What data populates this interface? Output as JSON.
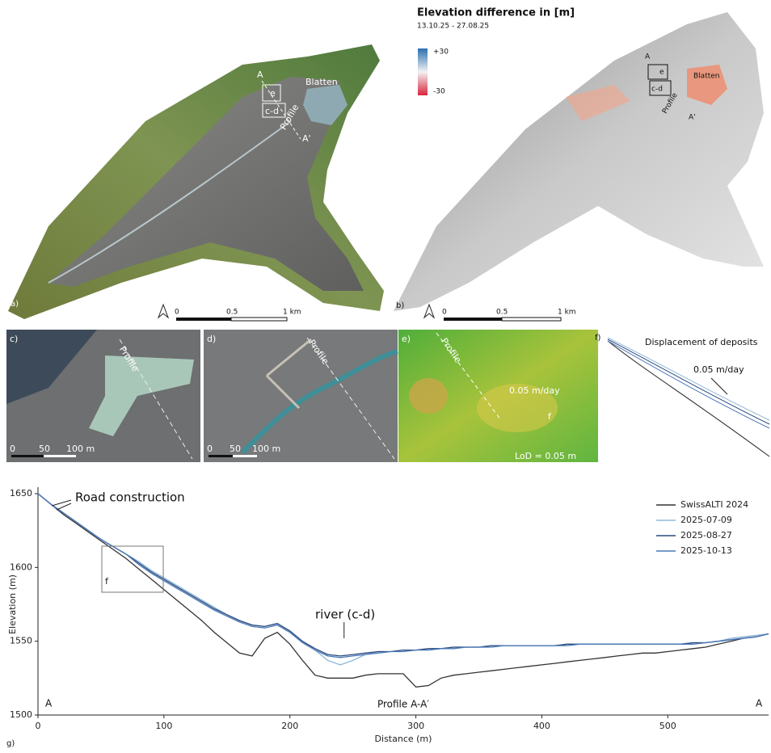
{
  "panels": {
    "a": {
      "label": "a)",
      "place": "Blatten",
      "profile": "Profile",
      "point_a": "A",
      "point_a_prime": "A'",
      "box_e": "e",
      "box_cd": "c-d",
      "scale": [
        "0",
        "0.5",
        "1 km"
      ]
    },
    "b": {
      "label": "b)",
      "title": "Elevation difference in [m]",
      "period": "13.10.25 - 27.08.25",
      "legend_max": "+30",
      "legend_min": "-30",
      "place": "Blatten",
      "profile": "Profile",
      "point_a": "A",
      "point_a_prime": "A'",
      "box_e": "e",
      "box_cd": "c-d",
      "scale": [
        "0",
        "0.5",
        "1 km"
      ]
    },
    "c": {
      "label": "c)",
      "profile": "Profile",
      "scale": [
        "0",
        "50",
        "100 m"
      ]
    },
    "d": {
      "label": "d)",
      "profile": "Profile",
      "scale": [
        "0",
        "50",
        "100 m"
      ]
    },
    "e": {
      "label": "e)",
      "profile": "Profile",
      "rate": "0.05 m/day",
      "box_f": "f",
      "lod": "LoD = 0.05 m"
    },
    "f": {
      "label": "f)",
      "title": "Displacement of deposits",
      "rate": "0.05 m/day"
    }
  },
  "chart_data": {
    "type": "line",
    "x_label": "Distance (m)",
    "y_label": "Elevation (m)",
    "x": [
      0,
      10,
      20,
      30,
      40,
      50,
      60,
      70,
      80,
      90,
      100,
      110,
      120,
      130,
      140,
      150,
      160,
      170,
      180,
      190,
      200,
      210,
      220,
      230,
      240,
      250,
      260,
      270,
      280,
      290,
      300,
      310,
      320,
      330,
      340,
      350,
      360,
      370,
      380,
      390,
      400,
      410,
      420,
      430,
      440,
      450,
      460,
      470,
      480,
      490,
      500,
      510,
      520,
      530,
      540,
      550,
      560,
      570,
      580
    ],
    "series": [
      {
        "name": "SwissALTI 2024",
        "color": "#333333",
        "values": [
          1650,
          1643,
          1636,
          1630,
          1624,
          1618,
          1612,
          1606,
          1599,
          1592,
          1585,
          1578,
          1571,
          1564,
          1556,
          1549,
          1542,
          1540,
          1552,
          1556,
          1548,
          1537,
          1527,
          1525,
          1525,
          1525,
          1527,
          1528,
          1528,
          1528,
          1519,
          1520,
          1525,
          1527,
          1528,
          1529,
          1530,
          1531,
          1532,
          1533,
          1534,
          1535,
          1536,
          1537,
          1538,
          1539,
          1540,
          1541,
          1542,
          1542,
          1543,
          1544,
          1545,
          1546,
          1548,
          1550,
          1552,
          1553,
          1555
        ]
      },
      {
        "name": "2025-07-09",
        "color": "#8fb8d8",
        "values": [
          1650,
          1643,
          1637,
          1631,
          1625,
          1619,
          1614,
          1609,
          1604,
          1598,
          1593,
          1588,
          1583,
          1578,
          1573,
          1568,
          1564,
          1561,
          1560,
          1562,
          1557,
          1550,
          1544,
          1537,
          1534,
          1537,
          1541,
          1543,
          1543,
          1544,
          1544,
          1545,
          1545,
          1546,
          1546,
          1546,
          1547,
          1547,
          1547,
          1547,
          1547,
          1547,
          1548,
          1548,
          1548,
          1548,
          1548,
          1548,
          1548,
          1548,
          1548,
          1548,
          1549,
          1549,
          1550,
          1552,
          1553,
          1554,
          1555
        ]
      },
      {
        "name": "2025-08-27",
        "color": "#2c4a7c",
        "values": [
          1650,
          1643,
          1637,
          1631,
          1625,
          1619,
          1614,
          1609,
          1603,
          1597,
          1592,
          1587,
          1582,
          1577,
          1572,
          1568,
          1564,
          1561,
          1560,
          1562,
          1557,
          1550,
          1545,
          1541,
          1540,
          1541,
          1542,
          1543,
          1543,
          1544,
          1544,
          1545,
          1545,
          1546,
          1546,
          1546,
          1547,
          1547,
          1547,
          1547,
          1547,
          1547,
          1548,
          1548,
          1548,
          1548,
          1548,
          1548,
          1548,
          1548,
          1548,
          1548,
          1549,
          1549,
          1550,
          1551,
          1552,
          1553,
          1555
        ]
      },
      {
        "name": "2025-10-13",
        "color": "#4a78b8",
        "values": [
          1650,
          1643,
          1637,
          1631,
          1625,
          1619,
          1614,
          1609,
          1602,
          1596,
          1591,
          1586,
          1581,
          1576,
          1571,
          1567,
          1563,
          1560,
          1559,
          1561,
          1556,
          1549,
          1544,
          1540,
          1539,
          1540,
          1541,
          1542,
          1543,
          1543,
          1544,
          1544,
          1545,
          1545,
          1546,
          1546,
          1546,
          1547,
          1547,
          1547,
          1547,
          1547,
          1547,
          1548,
          1548,
          1548,
          1548,
          1548,
          1548,
          1548,
          1548,
          1548,
          1548,
          1549,
          1550,
          1551,
          1552,
          1553,
          1555
        ]
      }
    ],
    "xlim": [
      0,
      580
    ],
    "xticks": [
      0,
      100,
      200,
      300,
      400,
      500
    ],
    "ylim": [
      1500,
      1650
    ],
    "yticks": [
      1500,
      1550,
      1600,
      1650
    ],
    "legend": "upper right",
    "annotations": [
      "Road construction",
      "river (c-d)",
      "f",
      "A",
      "A",
      "Profile A-A′",
      "g)"
    ]
  }
}
